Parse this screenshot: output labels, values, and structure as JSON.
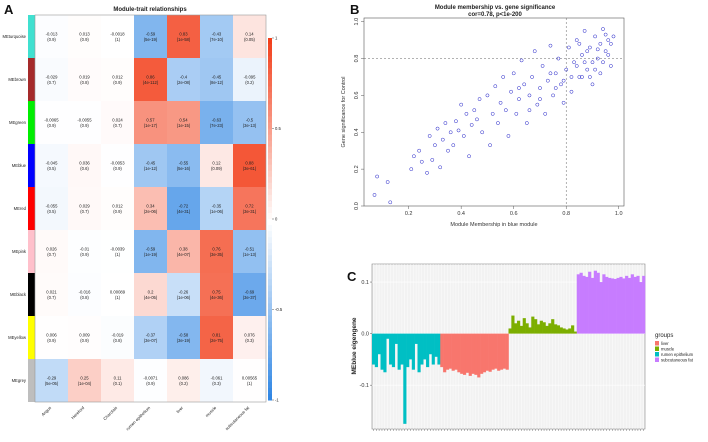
{
  "panels": {
    "a": "A",
    "b": "B",
    "c": "C"
  },
  "chart_data": [
    {
      "type": "heatmap",
      "title": "Module-trait relationships",
      "rows": [
        "MEturquoise",
        "MEbrown",
        "MEgreen",
        "MEblue",
        "MEred",
        "MEpink",
        "MEblack",
        "MEyellow",
        "MEgrey"
      ],
      "row_colors": [
        "#40e0d0",
        "#a52a2a",
        "#00ee00",
        "#0000ff",
        "#ff0000",
        "#ffc0cb",
        "#000000",
        "#ffff00",
        "#bebebe"
      ],
      "columns": [
        "Angus",
        "Hereford",
        "Charolais",
        "rumen epithelium",
        "liver",
        "muscle",
        "subcutaneous fat"
      ],
      "values": [
        [
          -0.013,
          0.013,
          -0.0018,
          -0.59,
          0.83,
          -0.43,
          0.14
        ],
        [
          -0.029,
          0.019,
          0.012,
          0.86,
          -0.4,
          -0.45,
          -0.095
        ],
        [
          -0.0065,
          -0.0055,
          0.024,
          0.57,
          0.54,
          -0.63,
          -0.5
        ],
        [
          -0.045,
          0.036,
          -0.0053,
          -0.45,
          -0.55,
          0.12,
          0.88
        ],
        [
          -0.055,
          0.029,
          0.012,
          0.34,
          -0.72,
          -0.35,
          0.72
        ],
        [
          0.026,
          -0.01,
          -0.0039,
          -0.59,
          0.38,
          0.76,
          -0.51
        ],
        [
          0.021,
          -0.016,
          0.00089,
          0.2,
          -0.26,
          0.75,
          -0.69
        ],
        [
          0.006,
          0.009,
          -0.019,
          -0.37,
          -0.58,
          0.81,
          0.076
        ],
        [
          -0.29,
          0.25,
          0.11,
          -0.0071,
          0.086,
          -0.061,
          0.00565
        ]
      ],
      "pvalues": [
        [
          "(0.9)",
          "(0.9)",
          "(1)",
          "(5e-19)",
          "(1e-58)",
          "(7e-10)",
          "(0.05)"
        ],
        [
          "(0.7)",
          "(0.8)",
          "(0.9)",
          "(4e-112)",
          "(2e-08)",
          "(8e-12)",
          "(0.2)"
        ],
        [
          "(0.9)",
          "(0.9)",
          "(0.7)",
          "(1e-17)",
          "(1e-15)",
          "(7e-23)",
          "(3e-13)"
        ],
        [
          "(0.5)",
          "(0.6)",
          "(0.9)",
          "(1e-12)",
          "(5e-16)",
          "(0.09)",
          "(3e-61)"
        ],
        [
          "(0.5)",
          "(0.7)",
          "(0.9)",
          "(2e-06)",
          "(4e-31)",
          "(1e-06)",
          "(3e-31)"
        ],
        [
          "(0.7)",
          "(0.9)",
          "(1)",
          "(1e-19)",
          "(4e-07)",
          "(3e-35)",
          "(1e-13)"
        ],
        [
          "(0.7)",
          "(0.8)",
          "(1)",
          "(4e-05)",
          "(1e-06)",
          "(4e-36)",
          "(3e-37)"
        ],
        [
          "(0.9)",
          "(0.9)",
          "(0.8)",
          "(3e-07)",
          "(3e-19)",
          "(2e-75)",
          "(0.3)"
        ],
        [
          "(5e-05)",
          "(1e-04)",
          "(0.1)",
          "(0.9)",
          "(0.2)",
          "(0.3)",
          "(1)"
        ]
      ],
      "colorbar": {
        "ticks": [
          "1",
          "0.5",
          "0",
          "-0.5",
          "-1"
        ],
        "range": [
          -1,
          1
        ],
        "low": "#2a83e3",
        "mid": "#ffffff",
        "high": "#f2401c"
      }
    },
    {
      "type": "scatter",
      "title": "Module membership vs. gene significance",
      "subtitle": "cor=0.78, p<1e-200",
      "xlabel": "Module Membership in blue module",
      "ylabel": "Gene significance for Control",
      "xlim": [
        0.03,
        1.02
      ],
      "ylim": [
        0.0,
        1.02
      ],
      "xticks": [
        "0.2",
        "0.4",
        "0.6",
        "0.8",
        "1.0"
      ],
      "yticks": [
        "0.0",
        "0.2",
        "0.4",
        "0.6",
        "0.8",
        "1.0"
      ],
      "thresholds": {
        "x": 0.8,
        "y": 0.8
      },
      "color": "#2020c8",
      "points": [
        [
          0.07,
          0.06
        ],
        [
          0.08,
          0.16
        ],
        [
          0.12,
          0.13
        ],
        [
          0.13,
          0.02
        ],
        [
          0.21,
          0.2
        ],
        [
          0.22,
          0.27
        ],
        [
          0.24,
          0.3
        ],
        [
          0.25,
          0.24
        ],
        [
          0.27,
          0.18
        ],
        [
          0.28,
          0.38
        ],
        [
          0.29,
          0.25
        ],
        [
          0.3,
          0.33
        ],
        [
          0.31,
          0.42
        ],
        [
          0.32,
          0.21
        ],
        [
          0.33,
          0.36
        ],
        [
          0.34,
          0.45
        ],
        [
          0.35,
          0.3
        ],
        [
          0.36,
          0.4
        ],
        [
          0.37,
          0.33
        ],
        [
          0.38,
          0.46
        ],
        [
          0.39,
          0.41
        ],
        [
          0.4,
          0.55
        ],
        [
          0.41,
          0.38
        ],
        [
          0.42,
          0.5
        ],
        [
          0.43,
          0.27
        ],
        [
          0.44,
          0.44
        ],
        [
          0.45,
          0.52
        ],
        [
          0.46,
          0.47
        ],
        [
          0.47,
          0.58
        ],
        [
          0.48,
          0.4
        ],
        [
          0.5,
          0.6
        ],
        [
          0.51,
          0.33
        ],
        [
          0.52,
          0.5
        ],
        [
          0.53,
          0.65
        ],
        [
          0.54,
          0.45
        ],
        [
          0.55,
          0.56
        ],
        [
          0.56,
          0.7
        ],
        [
          0.57,
          0.52
        ],
        [
          0.58,
          0.38
        ],
        [
          0.59,
          0.62
        ],
        [
          0.6,
          0.72
        ],
        [
          0.61,
          0.5
        ],
        [
          0.62,
          0.58
        ],
        [
          0.63,
          0.79
        ],
        [
          0.64,
          0.66
        ],
        [
          0.65,
          0.45
        ],
        [
          0.66,
          0.6
        ],
        [
          0.67,
          0.7
        ],
        [
          0.68,
          0.84
        ],
        [
          0.69,
          0.55
        ],
        [
          0.7,
          0.64
        ],
        [
          0.71,
          0.76
        ],
        [
          0.72,
          0.5
        ],
        [
          0.73,
          0.68
        ],
        [
          0.74,
          0.87
        ],
        [
          0.75,
          0.6
        ],
        [
          0.76,
          0.72
        ],
        [
          0.77,
          0.8
        ],
        [
          0.78,
          0.66
        ],
        [
          0.79,
          0.56
        ],
        [
          0.8,
          0.74
        ],
        [
          0.81,
          0.86
        ],
        [
          0.82,
          0.62
        ],
        [
          0.83,
          0.78
        ],
        [
          0.84,
          0.9
        ],
        [
          0.85,
          0.7
        ],
        [
          0.86,
          0.82
        ],
        [
          0.87,
          0.95
        ],
        [
          0.88,
          0.74
        ],
        [
          0.89,
          0.86
        ],
        [
          0.9,
          0.66
        ],
        [
          0.91,
          0.92
        ],
        [
          0.92,
          0.8
        ],
        [
          0.93,
          0.88
        ],
        [
          0.94,
          0.96
        ],
        [
          0.95,
          0.84
        ],
        [
          0.96,
          0.9
        ],
        [
          0.97,
          0.76
        ],
        [
          0.98,
          0.92
        ],
        [
          0.93,
          0.72
        ],
        [
          0.9,
          0.78
        ],
        [
          0.88,
          0.84
        ],
        [
          0.86,
          0.7
        ],
        [
          0.84,
          0.76
        ],
        [
          0.95,
          0.93
        ],
        [
          0.76,
          0.64
        ],
        [
          0.82,
          0.7
        ],
        [
          0.92,
          0.85
        ],
        [
          0.87,
          0.78
        ],
        [
          0.79,
          0.68
        ],
        [
          0.96,
          0.82
        ],
        [
          0.7,
          0.58
        ],
        [
          0.74,
          0.72
        ],
        [
          0.91,
          0.74
        ],
        [
          0.85,
          0.88
        ],
        [
          0.66,
          0.52
        ],
        [
          0.62,
          0.64
        ],
        [
          0.89,
          0.7
        ],
        [
          0.94,
          0.78
        ],
        [
          0.97,
          0.88
        ]
      ]
    },
    {
      "type": "bar",
      "ylabel": "MEblue eigengene",
      "ylim": [
        -0.185,
        0.135
      ],
      "yticks": [
        "0.1",
        "0.0",
        "-0.1"
      ],
      "legend_title": "groups",
      "legend_position": "right",
      "series": [
        {
          "name": "liver",
          "color": "#F8766D",
          "values": [
            -0.065,
            -0.075,
            -0.07,
            -0.068,
            -0.072,
            -0.07,
            -0.075,
            -0.078,
            -0.08,
            -0.076,
            -0.082,
            -0.078,
            -0.08,
            -0.085,
            -0.078,
            -0.075,
            -0.072,
            -0.074,
            -0.07,
            -0.068,
            -0.072,
            -0.07,
            -0.068,
            -0.07
          ]
        },
        {
          "name": "muscle",
          "color": "#7CAE00",
          "values": [
            0.01,
            0.035,
            0.02,
            0.025,
            0.015,
            0.03,
            0.02,
            0.012,
            0.033,
            0.028,
            0.018,
            0.025,
            0.022,
            0.015,
            0.02,
            0.028,
            0.018,
            0.016,
            0.012,
            0.01,
            0.008,
            0.01,
            0.016,
            0.004
          ]
        },
        {
          "name": "rumen epithelium",
          "color": "#00BFC4",
          "values": [
            -0.06,
            -0.065,
            -0.04,
            -0.07,
            -0.075,
            -0.01,
            -0.06,
            -0.065,
            -0.02,
            -0.07,
            -0.06,
            -0.175,
            -0.065,
            -0.05,
            -0.07,
            -0.02,
            -0.075,
            -0.06,
            -0.05,
            -0.065,
            -0.04,
            -0.06,
            -0.045,
            -0.06
          ]
        },
        {
          "name": "subcutaneous fat",
          "color": "#C77CFF",
          "values": [
            0.115,
            0.118,
            0.112,
            0.11,
            0.12,
            0.108,
            0.122,
            0.118,
            0.1,
            0.115,
            0.11,
            0.108,
            0.107,
            0.106,
            0.108,
            0.11,
            0.107,
            0.112,
            0.108,
            0.115,
            0.11,
            0.112,
            0.1,
            0.112
          ]
        }
      ],
      "draw_order": [
        "rumen epithelium",
        "liver",
        "muscle",
        "subcutaneous fat"
      ]
    }
  ]
}
